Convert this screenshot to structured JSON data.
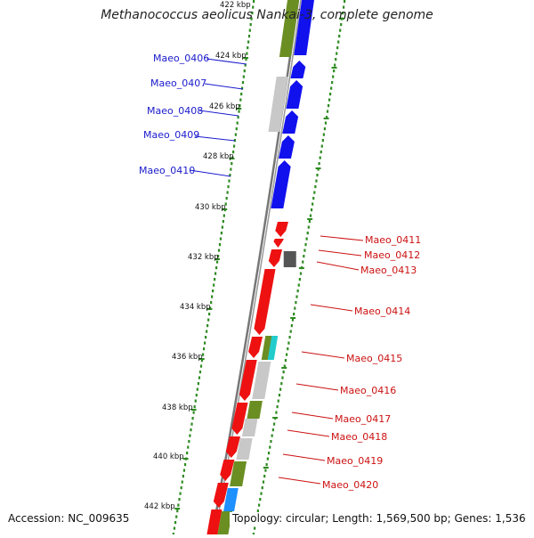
{
  "title": "Methanococcus aeolicus Nankai-3, complete genome",
  "footer": {
    "accession": "Accession: NC_009635",
    "topology": "Topology: circular; Length: 1,569,500 bp; Genes: 1,536"
  },
  "colors": {
    "blue_gene": "#1111ee",
    "red_gene": "#ee1111",
    "olive": "#6b8e23",
    "gray": "#c8c8c8",
    "dark_gray": "#555555",
    "cyan": "#22cccc",
    "dot_green": "#2e8b22",
    "backbone": "#777777"
  },
  "ticks": [
    {
      "label": "422 kbp"
    },
    {
      "label": "424 kbp"
    },
    {
      "label": "426 kbp"
    },
    {
      "label": "428 kbp"
    },
    {
      "label": "430 kbp"
    },
    {
      "label": "432 kbp"
    },
    {
      "label": "434 kbp"
    },
    {
      "label": "436 kbp"
    },
    {
      "label": "438 kbp"
    },
    {
      "label": "440 kbp"
    },
    {
      "label": "442 kbp"
    }
  ],
  "genes_left": [
    {
      "name": "Maeo_0406"
    },
    {
      "name": "Maeo_0407"
    },
    {
      "name": "Maeo_0408"
    },
    {
      "name": "Maeo_0409"
    },
    {
      "name": "Maeo_0410"
    }
  ],
  "genes_right": [
    {
      "name": "Maeo_0411"
    },
    {
      "name": "Maeo_0412"
    },
    {
      "name": "Maeo_0413"
    },
    {
      "name": "Maeo_0414"
    },
    {
      "name": "Maeo_0415"
    },
    {
      "name": "Maeo_0416"
    },
    {
      "name": "Maeo_0417"
    },
    {
      "name": "Maeo_0418"
    },
    {
      "name": "Maeo_0419"
    },
    {
      "name": "Maeo_0420"
    }
  ]
}
